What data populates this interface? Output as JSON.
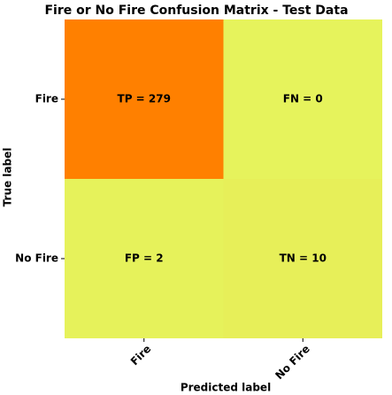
{
  "chart_data": {
    "type": "heatmap",
    "title": "Fire or No Fire Confusion Matrix - Test Data",
    "xlabel": "Predicted label",
    "ylabel": "True label",
    "x_categories": [
      "Fire",
      "No Fire"
    ],
    "y_categories": [
      "Fire",
      "No Fire"
    ],
    "values": [
      [
        279,
        0
      ],
      [
        2,
        10
      ]
    ],
    "value_labels": [
      [
        "TP = 279",
        "FN = 0"
      ],
      [
        "FP = 2",
        "TN = 10"
      ]
    ],
    "colormap": [
      "#e6f35c",
      "#ff8000"
    ]
  }
}
